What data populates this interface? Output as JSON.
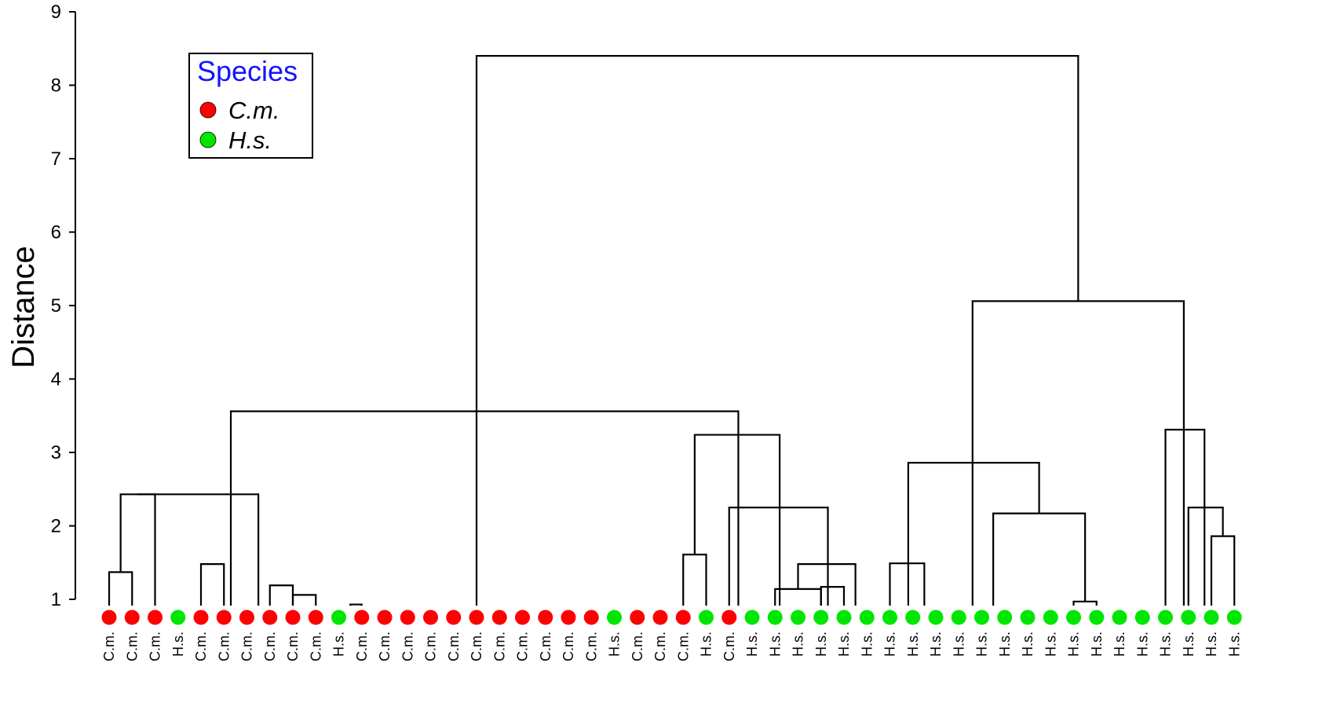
{
  "chart_data": {
    "type": "dendrogram",
    "ylabel": "Distance",
    "ylim": [
      1,
      9
    ],
    "yticks": [
      1,
      2,
      3,
      4,
      5,
      6,
      7,
      8,
      9
    ],
    "legend": {
      "title": "Species",
      "position": "top-left",
      "entries": [
        {
          "label": "C.m.",
          "color": "#ff0000"
        },
        {
          "label": "H.s.",
          "color": "#00e600"
        }
      ]
    },
    "leaves": [
      "C.m.",
      "C.m.",
      "C.m.",
      "H.s.",
      "C.m.",
      "C.m.",
      "C.m.",
      "C.m.",
      "C.m.",
      "C.m.",
      "H.s.",
      "C.m.",
      "C.m.",
      "C.m.",
      "C.m.",
      "C.m.",
      "C.m.",
      "C.m.",
      "C.m.",
      "C.m.",
      "C.m.",
      "C.m.",
      "H.s.",
      "C.m.",
      "C.m.",
      "C.m.",
      "H.s.",
      "C.m.",
      "H.s.",
      "H.s.",
      "H.s.",
      "H.s.",
      "H.s.",
      "H.s.",
      "H.s.",
      "H.s.",
      "H.s.",
      "H.s.",
      "H.s.",
      "H.s.",
      "H.s.",
      "H.s.",
      "H.s.",
      "H.s.",
      "H.s.",
      "H.s.",
      "H.s.",
      "H.s.",
      "H.s.",
      "H.s."
    ],
    "merges": [
      {
        "from": 0,
        "to": 1,
        "height": 1.37
      },
      {
        "from": 0.5,
        "to": 2,
        "height": 2.43
      },
      {
        "from": 4,
        "to": 5,
        "height": 1.48
      },
      {
        "from": 7,
        "to": 8,
        "height": 1.19
      },
      {
        "from": 8,
        "to": 9,
        "height": 1.06
      },
      {
        "from": 10.5,
        "to": 11,
        "height": 0.93
      },
      {
        "from": 1.25,
        "to": 6.5,
        "height": 2.43
      },
      {
        "from": 25,
        "to": 26,
        "height": 1.61
      },
      {
        "from": 29,
        "to": 31,
        "height": 1.14
      },
      {
        "from": 31,
        "to": 32,
        "height": 1.17
      },
      {
        "from": 30,
        "to": 32.5,
        "height": 1.48
      },
      {
        "from": 27,
        "to": 31.3,
        "height": 2.25
      },
      {
        "from": 25.5,
        "to": 29.2,
        "height": 3.24
      },
      {
        "from": 5.3,
        "to": 27.4,
        "height": 3.56
      },
      {
        "from": 34,
        "to": 35.5,
        "height": 1.49
      },
      {
        "from": 42,
        "to": 43,
        "height": 0.97
      },
      {
        "from": 38.5,
        "to": 42.5,
        "height": 2.17
      },
      {
        "from": 34.8,
        "to": 40.5,
        "height": 2.86
      },
      {
        "from": 48,
        "to": 49,
        "height": 1.86
      },
      {
        "from": 47,
        "to": 48.5,
        "height": 2.25
      },
      {
        "from": 46,
        "to": 47.7,
        "height": 3.31
      },
      {
        "from": 37.6,
        "to": 46.8,
        "height": 5.06
      },
      {
        "from": 16,
        "to": 42.2,
        "height": 8.4
      }
    ]
  }
}
